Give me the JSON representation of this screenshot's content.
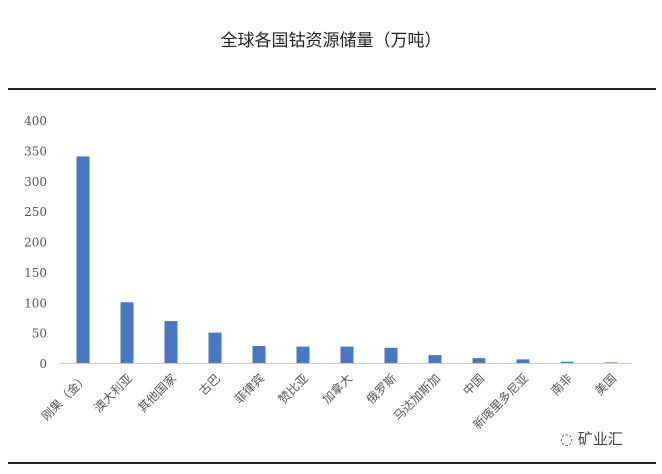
{
  "chart_data": {
    "type": "bar",
    "title": "全球各国钴资源储量（万吨）",
    "categories": [
      "刚果（金）",
      "澳大利亚",
      "其他国家",
      "古巴",
      "菲律宾",
      "赞比亚",
      "加拿大",
      "俄罗斯",
      "马达加斯加",
      "中国",
      "新喀里多尼亚",
      "南非",
      "美国"
    ],
    "values": [
      340,
      100,
      69,
      50,
      28,
      27,
      27,
      25,
      13,
      8,
      6,
      2,
      1
    ],
    "ylim": [
      0,
      400
    ],
    "yticks": [
      0,
      50,
      100,
      150,
      200,
      250,
      300,
      350,
      400
    ],
    "xlabel": "",
    "ylabel": "",
    "grid": false,
    "bar_color": "#4a78c0"
  },
  "watermark": {
    "text": "矿业汇",
    "icon": "wechat-icon"
  }
}
